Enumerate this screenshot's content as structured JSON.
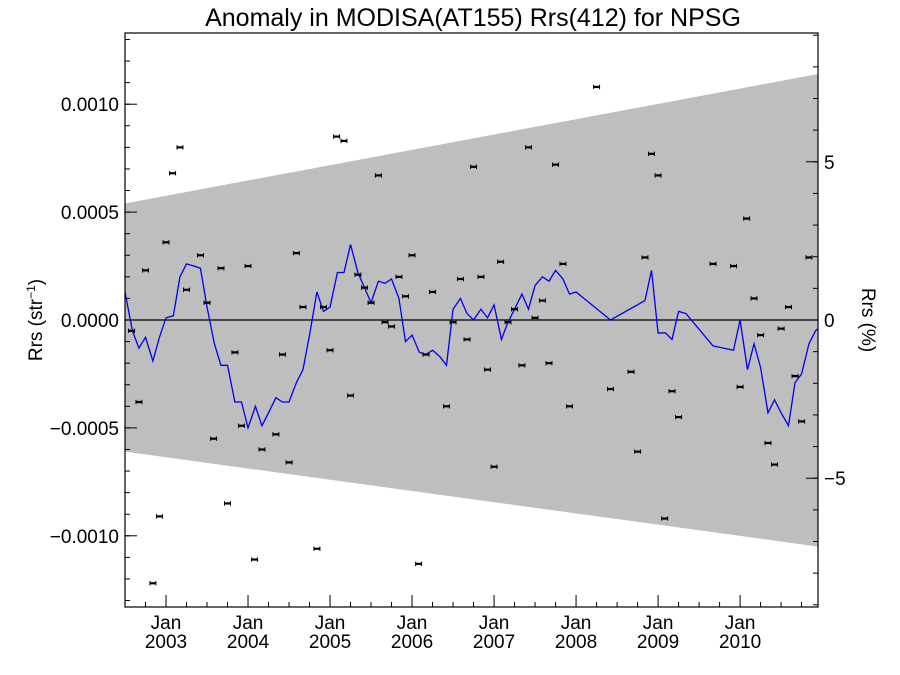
{
  "chart_data": {
    "type": "scatter",
    "title": "Anomaly in MODISA(AT155) Rrs(412) for NPSG",
    "ylabel": {
      "base": "Rrs (str",
      "sup": "−1",
      "close": ")"
    },
    "ylabel_right": "Rrs (%)",
    "xlim": [
      2002.5,
      2010.95
    ],
    "ylim": [
      -0.00133,
      0.00133
    ],
    "y_right_lim": [
      -9.07,
      9.07
    ],
    "y_ticks": [
      {
        "value": 0.001,
        "label": "0.0010"
      },
      {
        "value": 0.0005,
        "label": "0.0005"
      },
      {
        "value": 0.0,
        "label": "0.0000"
      },
      {
        "value": -0.0005,
        "label": "−0.0005"
      },
      {
        "value": -0.001,
        "label": "−0.0010"
      }
    ],
    "y_right_ticks": [
      {
        "value": 5,
        "label": "5"
      },
      {
        "value": 0,
        "label": "0"
      },
      {
        "value": -5,
        "label": "−5"
      }
    ],
    "x_ticks": [
      {
        "value": 2003.0,
        "month": "Jan",
        "year": "2003"
      },
      {
        "value": 2004.0,
        "month": "Jan",
        "year": "2004"
      },
      {
        "value": 2005.0,
        "month": "Jan",
        "year": "2005"
      },
      {
        "value": 2006.0,
        "month": "Jan",
        "year": "2006"
      },
      {
        "value": 2007.0,
        "month": "Jan",
        "year": "2007"
      },
      {
        "value": 2008.0,
        "month": "Jan",
        "year": "2008"
      },
      {
        "value": 2009.0,
        "month": "Jan",
        "year": "2009"
      },
      {
        "value": 2010.0,
        "month": "Jan",
        "year": "2010"
      }
    ],
    "band": {
      "x": [
        2002.5,
        2010.95
      ],
      "upper": [
        0.00054,
        0.00114
      ],
      "lower": [
        -0.00061,
        -0.00105
      ],
      "color": "#bebebe"
    },
    "zero_line": 0.0,
    "colors": {
      "line": "#0000ee",
      "points": "#000000",
      "band": "#bebebe"
    },
    "series": [
      {
        "kind": "line",
        "x": [
          2002.5,
          2002.59,
          2002.67,
          2002.75,
          2002.84,
          2002.92,
          2003.0,
          2003.09,
          2003.17,
          2003.25,
          2003.34,
          2003.42,
          2003.5,
          2003.59,
          2003.67,
          2003.75,
          2003.84,
          2003.92,
          2004.0,
          2004.09,
          2004.17,
          2004.25,
          2004.34,
          2004.42,
          2004.5,
          2004.59,
          2004.67,
          2004.75,
          2004.84,
          2004.92,
          2005.0,
          2005.09,
          2005.17,
          2005.25,
          2005.34,
          2005.42,
          2005.5,
          2005.59,
          2005.67,
          2005.75,
          2005.84,
          2005.92,
          2006.0,
          2006.09,
          2006.17,
          2006.25,
          2006.34,
          2006.42,
          2006.5,
          2006.59,
          2006.67,
          2006.75,
          2006.84,
          2006.92,
          2007.0,
          2007.09,
          2007.17,
          2007.25,
          2007.34,
          2007.42,
          2007.5,
          2007.59,
          2007.67,
          2007.75,
          2007.84,
          2007.92,
          2008.0,
          2008.42,
          2008.84,
          2008.92,
          2009.0,
          2009.09,
          2009.17,
          2009.25,
          2009.34,
          2009.67,
          2009.92,
          2010.0,
          2010.09,
          2010.17,
          2010.25,
          2010.34,
          2010.42,
          2010.5,
          2010.59,
          2010.67,
          2010.75,
          2010.84,
          2010.92,
          2010.95
        ],
        "y": [
          0.00013,
          -5e-05,
          -0.00013,
          -8e-05,
          -0.00019,
          -8e-05,
          1e-05,
          2e-05,
          0.0002,
          0.00026,
          0.00025,
          0.00024,
          6e-05,
          -0.00011,
          -0.00021,
          -0.00021,
          -0.00038,
          -0.00038,
          -0.0005,
          -0.0004,
          -0.00049,
          -0.00043,
          -0.00036,
          -0.00038,
          -0.00038,
          -0.00029,
          -0.00023,
          -7e-05,
          0.00013,
          4e-05,
          6e-05,
          0.00022,
          0.00022,
          0.00035,
          0.00022,
          0.00015,
          8e-05,
          0.00018,
          0.00017,
          0.00019,
          0.0001,
          -0.0001,
          -7e-05,
          -0.00015,
          -0.00016,
          -0.00014,
          -0.00017,
          -0.00021,
          5e-05,
          0.0001,
          3e-05,
          0.0,
          5e-05,
          1e-05,
          7e-05,
          -9e-05,
          -1e-05,
          5e-05,
          0.00012,
          5e-05,
          0.00016,
          0.0002,
          0.00018,
          0.00023,
          0.00019,
          0.00012,
          0.00013,
          0.0,
          9e-05,
          0.00023,
          -6e-05,
          -6e-05,
          -9e-05,
          4e-05,
          3e-05,
          -0.00012,
          -0.00014,
          0.0,
          -0.00023,
          -0.00011,
          -0.00022,
          -0.00043,
          -0.00037,
          -0.00043,
          -0.00049,
          -0.00029,
          -0.00025,
          -0.00011,
          -5e-05,
          -4e-05
        ]
      },
      {
        "kind": "points",
        "points": [
          [
            2002.58,
            -5e-05
          ],
          [
            2002.67,
            -0.00038
          ],
          [
            2002.75,
            0.00023
          ],
          [
            2002.84,
            -0.00122
          ],
          [
            2002.92,
            -0.00091
          ],
          [
            2003.0,
            0.00036
          ],
          [
            2003.08,
            0.00068
          ],
          [
            2003.17,
            0.0008
          ],
          [
            2003.25,
            0.00014
          ],
          [
            2003.42,
            0.0003
          ],
          [
            2003.5,
            8e-05
          ],
          [
            2003.58,
            -0.00055
          ],
          [
            2003.67,
            0.00024
          ],
          [
            2003.75,
            -0.00085
          ],
          [
            2003.84,
            -0.00015
          ],
          [
            2003.92,
            -0.00049
          ],
          [
            2004.0,
            0.00025
          ],
          [
            2004.08,
            -0.00111
          ],
          [
            2004.17,
            -0.0006
          ],
          [
            2004.34,
            -0.00053
          ],
          [
            2004.42,
            -0.00016
          ],
          [
            2004.5,
            -0.00066
          ],
          [
            2004.59,
            0.00031
          ],
          [
            2004.67,
            6e-05
          ],
          [
            2004.84,
            -0.00106
          ],
          [
            2004.92,
            6e-05
          ],
          [
            2005.0,
            -0.00014
          ],
          [
            2005.08,
            0.00085
          ],
          [
            2005.17,
            0.00083
          ],
          [
            2005.25,
            -0.00035
          ],
          [
            2005.34,
            0.00021
          ],
          [
            2005.42,
            0.00015
          ],
          [
            2005.5,
            8e-05
          ],
          [
            2005.59,
            0.00067
          ],
          [
            2005.67,
            -1e-05
          ],
          [
            2005.75,
            -3e-05
          ],
          [
            2005.84,
            0.0002
          ],
          [
            2005.92,
            0.00011
          ],
          [
            2006.0,
            0.0003
          ],
          [
            2006.08,
            -0.00113
          ],
          [
            2006.17,
            -0.00016
          ],
          [
            2006.25,
            0.00013
          ],
          [
            2006.42,
            -0.0004
          ],
          [
            2006.5,
            -1e-05
          ],
          [
            2006.59,
            0.00019
          ],
          [
            2006.67,
            -9e-05
          ],
          [
            2006.75,
            0.00071
          ],
          [
            2006.84,
            0.0002
          ],
          [
            2006.92,
            -0.00023
          ],
          [
            2007.0,
            -0.00068
          ],
          [
            2007.08,
            0.00027
          ],
          [
            2007.17,
            -1e-05
          ],
          [
            2007.25,
            5e-05
          ],
          [
            2007.34,
            -0.00021
          ],
          [
            2007.42,
            0.0008
          ],
          [
            2007.5,
            1e-05
          ],
          [
            2007.59,
            9e-05
          ],
          [
            2007.67,
            -0.0002
          ],
          [
            2007.75,
            0.00072
          ],
          [
            2007.84,
            0.00026
          ],
          [
            2007.92,
            -0.0004
          ],
          [
            2008.25,
            0.00108
          ],
          [
            2008.42,
            -0.00032
          ],
          [
            2008.67,
            -0.00024
          ],
          [
            2008.75,
            -0.00061
          ],
          [
            2008.84,
            0.00029
          ],
          [
            2008.92,
            0.00077
          ],
          [
            2009.0,
            0.00067
          ],
          [
            2009.08,
            -0.00092
          ],
          [
            2009.17,
            -0.00033
          ],
          [
            2009.25,
            -0.00045
          ],
          [
            2009.67,
            0.00026
          ],
          [
            2009.92,
            0.00025
          ],
          [
            2010.0,
            -0.00031
          ],
          [
            2010.08,
            0.00047
          ],
          [
            2010.17,
            0.0001
          ],
          [
            2010.25,
            -7e-05
          ],
          [
            2010.34,
            -0.00057
          ],
          [
            2010.42,
            -0.00067
          ],
          [
            2010.5,
            -4e-05
          ],
          [
            2010.59,
            6e-05
          ],
          [
            2010.67,
            -0.00026
          ],
          [
            2010.75,
            -0.00047
          ],
          [
            2010.84,
            0.00029
          ]
        ]
      }
    ]
  }
}
